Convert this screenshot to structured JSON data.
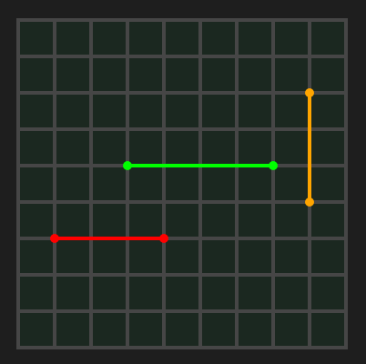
{
  "board": {
    "cols": 9,
    "rows": 9,
    "colors": {
      "background": "#1e1e1e",
      "cell": "#1b2820",
      "grid": "#464646"
    }
  },
  "segments": [
    {
      "name": "green-segment",
      "color": "#00ff00",
      "start": {
        "col": 3,
        "row": 4
      },
      "end": {
        "col": 7,
        "row": 4
      }
    },
    {
      "name": "orange-segment",
      "color": "#ffa500",
      "start": {
        "col": 8,
        "row": 2
      },
      "end": {
        "col": 8,
        "row": 5
      }
    },
    {
      "name": "red-segment",
      "color": "#ff0000",
      "start": {
        "col": 1,
        "row": 6
      },
      "end": {
        "col": 4,
        "row": 6
      }
    }
  ]
}
